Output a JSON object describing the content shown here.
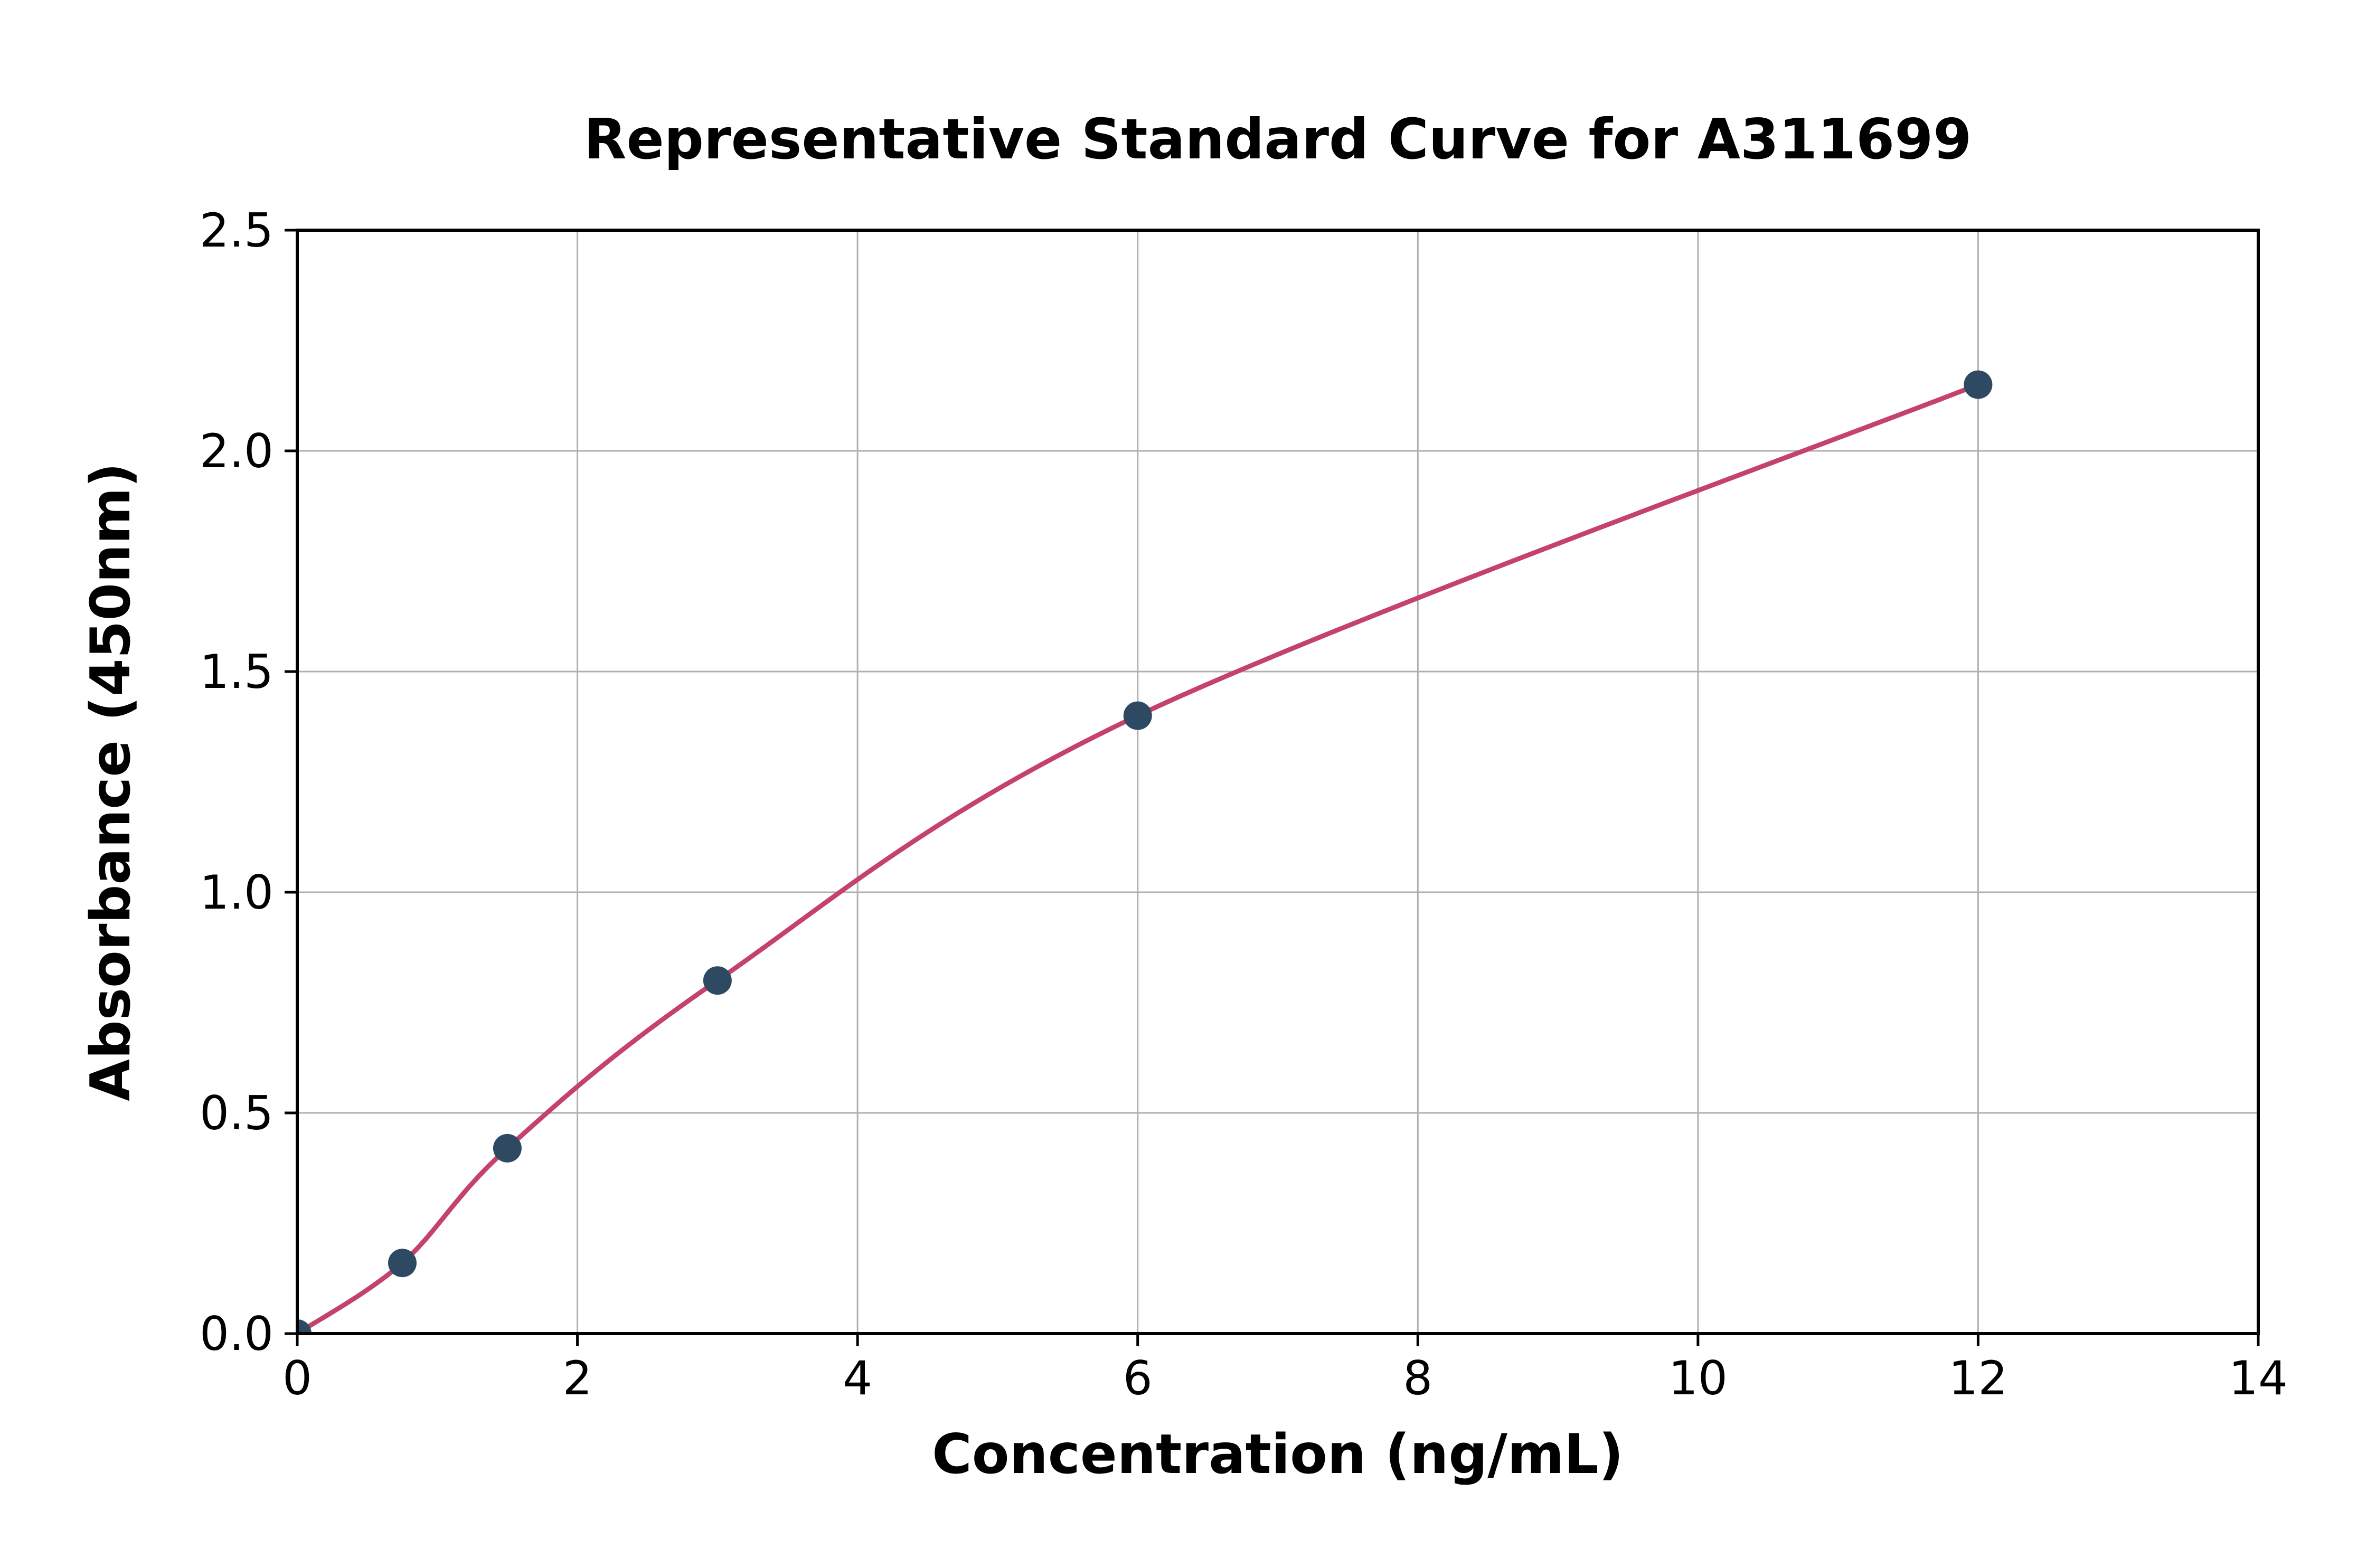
{
  "chart_data": {
    "type": "scatter",
    "title": "Representative Standard Curve for A311699",
    "xlabel": "Concentration (ng/mL)",
    "ylabel": "Absorbance (450nm)",
    "x": [
      0,
      0.75,
      1.5,
      3,
      6,
      12
    ],
    "y": [
      0.0,
      0.16,
      0.42,
      0.8,
      1.4,
      2.15
    ],
    "xlim": [
      0,
      14
    ],
    "ylim": [
      0.0,
      2.5
    ],
    "xticks": [
      0,
      2,
      4,
      6,
      8,
      10,
      12,
      14
    ],
    "xtick_labels": [
      "0",
      "2",
      "4",
      "6",
      "8",
      "10",
      "12",
      "14"
    ],
    "yticks": [
      0.0,
      0.5,
      1.0,
      1.5,
      2.0,
      2.5
    ],
    "ytick_labels": [
      "0.0",
      "0.5",
      "1.0",
      "1.5",
      "2.0",
      "2.5"
    ],
    "grid": true,
    "legend": "none",
    "line_color": "#c4426b",
    "point_color": "#2e4a63",
    "grid_color": "#b0b0b0",
    "border_color": "#000000"
  }
}
